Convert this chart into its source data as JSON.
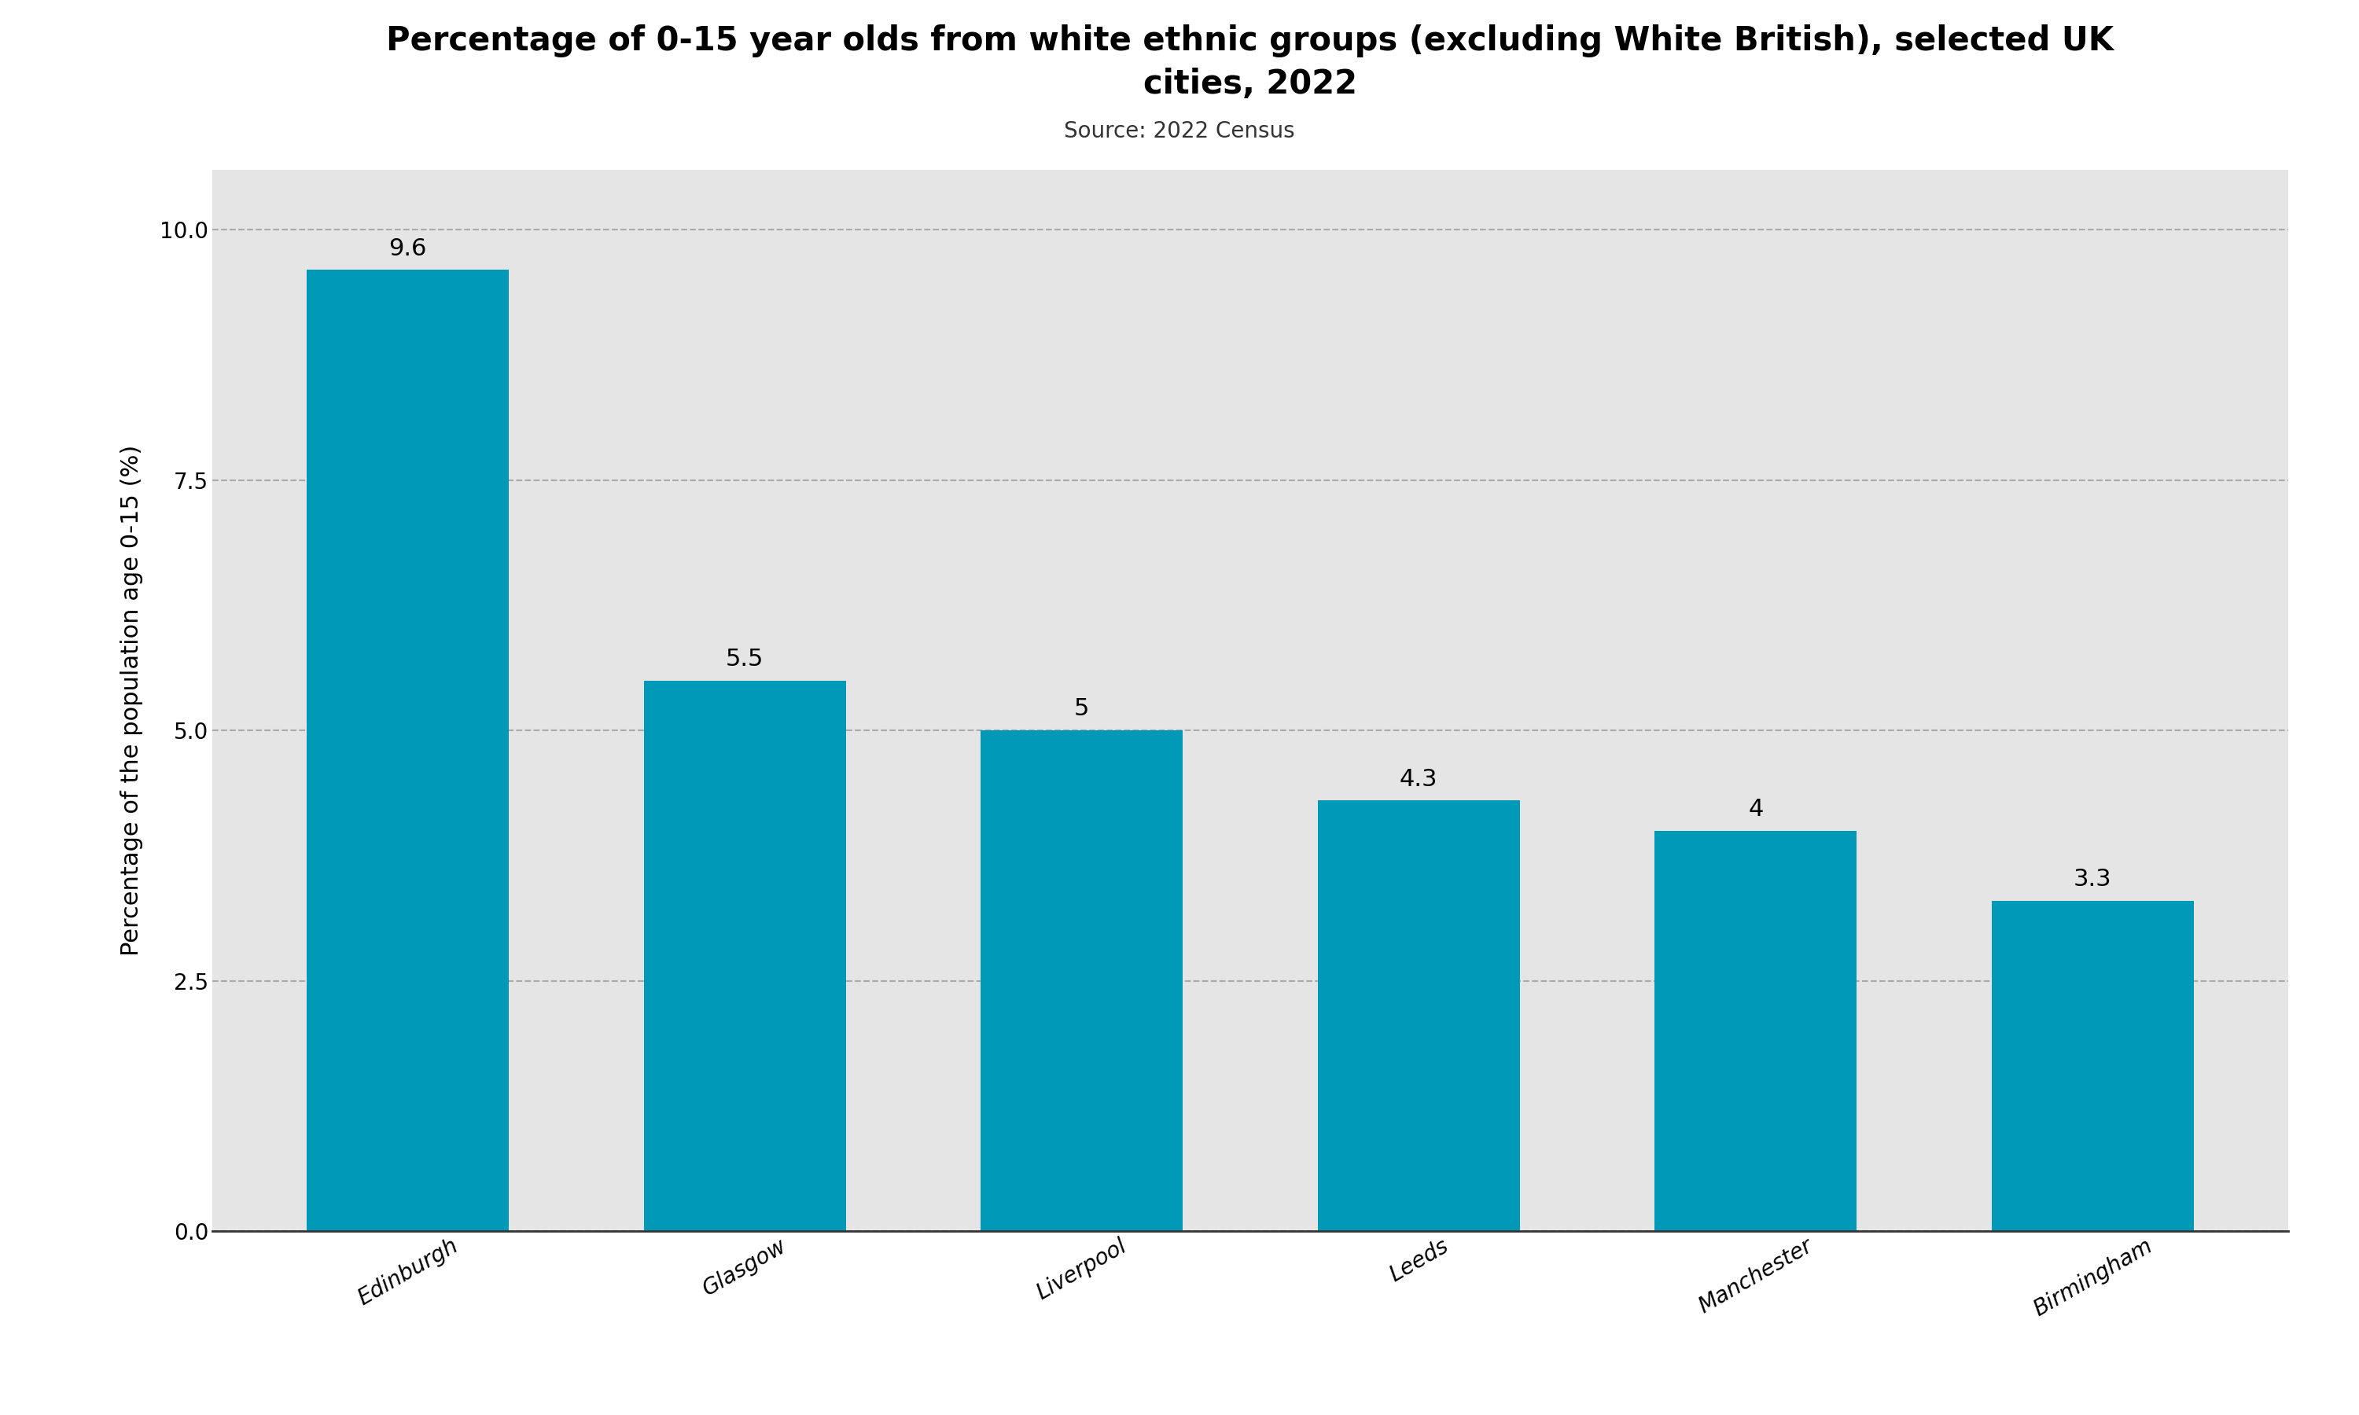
{
  "title": "Percentage of 0-15 year olds from white ethnic groups (excluding White British), selected UK\ncities, 2022",
  "source": "Source: 2022 Census",
  "categories": [
    "Edinburgh",
    "Glasgow",
    "Liverpool",
    "Leeds",
    "Manchester",
    "Birmingham"
  ],
  "values": [
    9.6,
    5.5,
    5.0,
    4.3,
    4.0,
    3.3
  ],
  "value_labels": [
    "9.6",
    "5.5",
    "5",
    "4.3",
    "4",
    "3.3"
  ],
  "bar_color": "#0099b8",
  "ylabel": "Percentage of the population age 0-15 (%)",
  "ylim": [
    0,
    10.6
  ],
  "yticks": [
    0.0,
    2.5,
    5.0,
    7.5,
    10.0
  ],
  "background_color": "#e5e5e5",
  "title_fontsize": 30,
  "source_fontsize": 20,
  "ylabel_fontsize": 22,
  "tick_fontsize": 20,
  "label_fontsize": 22
}
